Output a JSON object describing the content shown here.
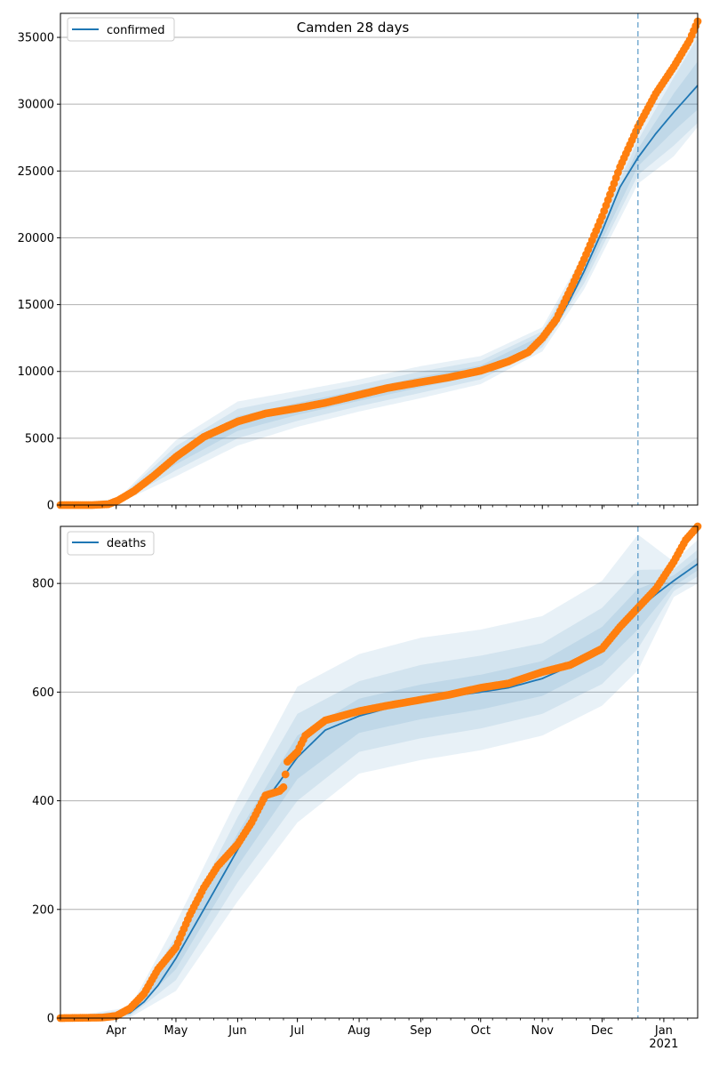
{
  "figure": {
    "title": "Camden 28 days"
  },
  "colors": {
    "model_line": "#1f77b4",
    "observed_points": "#ff7f0e",
    "band_fill": "#1f77b4",
    "forecast_line": "#1f77b4",
    "grid": "#b0b0b0"
  },
  "chart_data": [
    {
      "type": "line",
      "legend_entry": "confirmed",
      "legend_position": "upper-left",
      "grid": "horizontal",
      "x_axis": {
        "type": "date",
        "range": [
          "2020-03-04",
          "2021-01-18"
        ],
        "major_ticks": [],
        "minor_ticks": "weekly"
      },
      "y_axis": {
        "range": [
          0,
          36800
        ],
        "ticks": [
          0,
          5000,
          10000,
          15000,
          20000,
          25000,
          30000,
          35000
        ]
      },
      "forecast_start": "2020-12-19",
      "model": {
        "name": "confirmed",
        "points": [
          [
            "2020-03-04",
            0
          ],
          [
            "2020-03-20",
            0
          ],
          [
            "2020-03-28",
            100
          ],
          [
            "2020-04-02",
            300
          ],
          [
            "2020-04-10",
            1000
          ],
          [
            "2020-04-20",
            2100
          ],
          [
            "2020-05-01",
            3500
          ],
          [
            "2020-05-15",
            5000
          ],
          [
            "2020-06-01",
            6100
          ],
          [
            "2020-06-15",
            6700
          ],
          [
            "2020-07-01",
            7200
          ],
          [
            "2020-07-15",
            7600
          ],
          [
            "2020-08-01",
            8200
          ],
          [
            "2020-08-15",
            8700
          ],
          [
            "2020-09-01",
            9200
          ],
          [
            "2020-09-15",
            9600
          ],
          [
            "2020-10-01",
            10100
          ],
          [
            "2020-10-15",
            10800
          ],
          [
            "2020-10-25",
            11500
          ],
          [
            "2020-11-01",
            12400
          ],
          [
            "2020-11-08",
            13500
          ],
          [
            "2020-11-15",
            15400
          ],
          [
            "2020-11-22",
            17500
          ],
          [
            "2020-12-01",
            20500
          ],
          [
            "2020-12-10",
            23800
          ],
          [
            "2020-12-19",
            26000
          ],
          [
            "2020-12-28",
            27800
          ],
          [
            "2021-01-06",
            29400
          ],
          [
            "2021-01-18",
            31400
          ]
        ],
        "bands": [
          {
            "points": [
              [
                "2020-03-04",
                0,
                0
              ],
              [
                "2020-04-02",
                240,
                360
              ],
              [
                "2020-05-01",
                3050,
                3950
              ],
              [
                "2020-06-01",
                5550,
                6650
              ],
              [
                "2020-07-01",
                6750,
                7650
              ],
              [
                "2020-08-01",
                7800,
                8600
              ],
              [
                "2020-09-01",
                8800,
                9600
              ],
              [
                "2020-10-01",
                9750,
                10450
              ],
              [
                "2020-11-01",
                12100,
                12700
              ],
              [
                "2020-11-22",
                17050,
                17950
              ],
              [
                "2020-12-19",
                25350,
                26650
              ],
              [
                "2021-01-06",
                28000,
                30800
              ],
              [
                "2021-01-18",
                29600,
                33200
              ]
            ]
          },
          {
            "points": [
              [
                "2020-03-04",
                0,
                0
              ],
              [
                "2020-04-02",
                180,
                420
              ],
              [
                "2020-05-01",
                2600,
                4400
              ],
              [
                "2020-06-01",
                5000,
                7200
              ],
              [
                "2020-07-01",
                6300,
                8100
              ],
              [
                "2020-08-01",
                7400,
                9000
              ],
              [
                "2020-09-01",
                8400,
                10000
              ],
              [
                "2020-10-01",
                9400,
                10800
              ],
              [
                "2020-11-01",
                11800,
                13000
              ],
              [
                "2020-11-22",
                16600,
                18400
              ],
              [
                "2020-12-19",
                24700,
                27300
              ],
              [
                "2021-01-06",
                26900,
                32000
              ],
              [
                "2021-01-18",
                28600,
                35000
              ]
            ]
          },
          {
            "points": [
              [
                "2020-03-04",
                0,
                0
              ],
              [
                "2020-04-02",
                120,
                480
              ],
              [
                "2020-05-01",
                2150,
                4850
              ],
              [
                "2020-06-01",
                4450,
                7750
              ],
              [
                "2020-07-01",
                5850,
                8550
              ],
              [
                "2020-08-01",
                7000,
                9400
              ],
              [
                "2020-09-01",
                8000,
                10400
              ],
              [
                "2020-10-01",
                9050,
                11150
              ],
              [
                "2020-11-01",
                11500,
                13300
              ],
              [
                "2020-11-22",
                16150,
                18850
              ],
              [
                "2020-12-19",
                24050,
                27950
              ],
              [
                "2021-01-06",
                26100,
                33000
              ],
              [
                "2021-01-18",
                28300,
                36200
              ]
            ]
          }
        ]
      },
      "observed": {
        "name": "confirmed observed",
        "points": [
          [
            "2020-03-04",
            0
          ],
          [
            "2020-03-20",
            0
          ],
          [
            "2020-03-28",
            60
          ],
          [
            "2020-04-02",
            350
          ],
          [
            "2020-04-10",
            1050
          ],
          [
            "2020-04-20",
            2200
          ],
          [
            "2020-05-01",
            3600
          ],
          [
            "2020-05-15",
            5100
          ],
          [
            "2020-06-01",
            6250
          ],
          [
            "2020-06-15",
            6850
          ],
          [
            "2020-07-01",
            7250
          ],
          [
            "2020-07-15",
            7650
          ],
          [
            "2020-08-01",
            8250
          ],
          [
            "2020-08-15",
            8750
          ],
          [
            "2020-09-01",
            9200
          ],
          [
            "2020-09-15",
            9550
          ],
          [
            "2020-10-01",
            10050
          ],
          [
            "2020-10-15",
            10750
          ],
          [
            "2020-10-25",
            11450
          ],
          [
            "2020-11-01",
            12500
          ],
          [
            "2020-11-08",
            13900
          ],
          [
            "2020-11-15",
            16100
          ],
          [
            "2020-11-22",
            18400
          ],
          [
            "2020-12-01",
            21600
          ],
          [
            "2020-12-10",
            25300
          ],
          [
            "2020-12-19",
            28300
          ],
          [
            "2020-12-28",
            30800
          ],
          [
            "2021-01-06",
            32800
          ],
          [
            "2021-01-14",
            34800
          ],
          [
            "2021-01-18",
            36200
          ]
        ]
      }
    },
    {
      "type": "line",
      "legend_entry": "deaths",
      "legend_position": "upper-left",
      "grid": "horizontal",
      "x_axis": {
        "type": "date",
        "range": [
          "2020-03-04",
          "2021-01-18"
        ],
        "major_ticks": [
          {
            "date": "2020-04-01",
            "label": "Apr"
          },
          {
            "date": "2020-05-01",
            "label": "May"
          },
          {
            "date": "2020-06-01",
            "label": "Jun"
          },
          {
            "date": "2020-07-01",
            "label": "Jul"
          },
          {
            "date": "2020-08-01",
            "label": "Aug"
          },
          {
            "date": "2020-09-01",
            "label": "Sep"
          },
          {
            "date": "2020-10-01",
            "label": "Oct"
          },
          {
            "date": "2020-11-01",
            "label": "Nov"
          },
          {
            "date": "2020-12-01",
            "label": "Dec"
          },
          {
            "date": "2021-01-01",
            "label": "Jan\n2021"
          }
        ],
        "minor_ticks": "weekly"
      },
      "y_axis": {
        "range": [
          0,
          905
        ],
        "ticks": [
          0,
          200,
          400,
          600,
          800
        ]
      },
      "forecast_start": "2020-12-19",
      "model": {
        "name": "deaths",
        "points": [
          [
            "2020-03-04",
            0
          ],
          [
            "2020-03-25",
            0
          ],
          [
            "2020-04-01",
            3
          ],
          [
            "2020-04-08",
            10
          ],
          [
            "2020-04-15",
            30
          ],
          [
            "2020-04-22",
            60
          ],
          [
            "2020-05-01",
            110
          ],
          [
            "2020-05-15",
            200
          ],
          [
            "2020-06-01",
            310
          ],
          [
            "2020-06-15",
            400
          ],
          [
            "2020-07-01",
            480
          ],
          [
            "2020-07-15",
            530
          ],
          [
            "2020-08-01",
            556
          ],
          [
            "2020-08-15",
            570
          ],
          [
            "2020-09-01",
            582
          ],
          [
            "2020-09-15",
            592
          ],
          [
            "2020-10-01",
            600
          ],
          [
            "2020-10-15",
            608
          ],
          [
            "2020-11-01",
            625
          ],
          [
            "2020-11-15",
            648
          ],
          [
            "2020-12-01",
            685
          ],
          [
            "2020-12-10",
            720
          ],
          [
            "2020-12-19",
            752
          ],
          [
            "2020-12-28",
            780
          ],
          [
            "2021-01-06",
            805
          ],
          [
            "2021-01-18",
            836
          ]
        ],
        "bands": [
          {
            "points": [
              [
                "2020-03-04",
                0,
                0
              ],
              [
                "2020-04-08",
                7,
                13
              ],
              [
                "2020-05-01",
                90,
                130
              ],
              [
                "2020-06-01",
                280,
                340
              ],
              [
                "2020-07-01",
                440,
                520
              ],
              [
                "2020-08-01",
                525,
                588
              ],
              [
                "2020-09-01",
                550,
                614
              ],
              [
                "2020-10-01",
                568,
                632
              ],
              [
                "2020-11-01",
                593,
                657
              ],
              [
                "2020-12-01",
                650,
                720
              ],
              [
                "2020-12-19",
                715,
                790
              ],
              [
                "2021-01-06",
                795,
                815
              ],
              [
                "2021-01-18",
                824,
                848
              ]
            ]
          },
          {
            "points": [
              [
                "2020-03-04",
                0,
                0
              ],
              [
                "2020-04-08",
                4,
                16
              ],
              [
                "2020-05-01",
                70,
                150
              ],
              [
                "2020-06-01",
                250,
                370
              ],
              [
                "2020-07-01",
                400,
                560
              ],
              [
                "2020-08-01",
                490,
                620
              ],
              [
                "2020-09-01",
                515,
                650
              ],
              [
                "2020-10-01",
                533,
                667
              ],
              [
                "2020-11-01",
                560,
                690
              ],
              [
                "2020-12-01",
                615,
                755
              ],
              [
                "2020-12-19",
                680,
                825
              ],
              [
                "2021-01-06",
                786,
                826
              ],
              [
                "2021-01-18",
                813,
                862
              ]
            ]
          },
          {
            "points": [
              [
                "2020-03-04",
                0,
                0
              ],
              [
                "2020-04-08",
                1,
                20
              ],
              [
                "2020-05-01",
                50,
                175
              ],
              [
                "2020-06-01",
                215,
                405
              ],
              [
                "2020-07-01",
                360,
                610
              ],
              [
                "2020-08-01",
                450,
                670
              ],
              [
                "2020-09-01",
                475,
                700
              ],
              [
                "2020-10-01",
                493,
                715
              ],
              [
                "2020-11-01",
                520,
                740
              ],
              [
                "2020-12-01",
                575,
                805
              ],
              [
                "2020-12-19",
                640,
                890
              ],
              [
                "2021-01-06",
                775,
                840
              ],
              [
                "2021-01-18",
                800,
                880
              ]
            ]
          }
        ]
      },
      "observed": {
        "name": "deaths observed",
        "points": [
          [
            "2020-03-04",
            0
          ],
          [
            "2020-03-25",
            1
          ],
          [
            "2020-04-01",
            4
          ],
          [
            "2020-04-08",
            18
          ],
          [
            "2020-04-15",
            45
          ],
          [
            "2020-04-22",
            90
          ],
          [
            "2020-05-01",
            130
          ],
          [
            "2020-05-08",
            190
          ],
          [
            "2020-05-15",
            240
          ],
          [
            "2020-05-22",
            280
          ],
          [
            "2020-06-01",
            320
          ],
          [
            "2020-06-08",
            360
          ],
          [
            "2020-06-15",
            410
          ],
          [
            "2020-06-22",
            418
          ],
          [
            "2020-06-24",
            425
          ],
          [
            "2020-06-26",
            472
          ],
          [
            "2020-07-01",
            490
          ],
          [
            "2020-07-05",
            520
          ],
          [
            "2020-07-15",
            548
          ],
          [
            "2020-08-01",
            565
          ],
          [
            "2020-08-15",
            575
          ],
          [
            "2020-09-01",
            586
          ],
          [
            "2020-09-15",
            595
          ],
          [
            "2020-10-01",
            608
          ],
          [
            "2020-10-15",
            616
          ],
          [
            "2020-11-01",
            637
          ],
          [
            "2020-11-15",
            650
          ],
          [
            "2020-12-01",
            680
          ],
          [
            "2020-12-10",
            720
          ],
          [
            "2020-12-19",
            755
          ],
          [
            "2020-12-28",
            790
          ],
          [
            "2021-01-06",
            840
          ],
          [
            "2021-01-12",
            880
          ],
          [
            "2021-01-18",
            905
          ]
        ]
      }
    }
  ]
}
